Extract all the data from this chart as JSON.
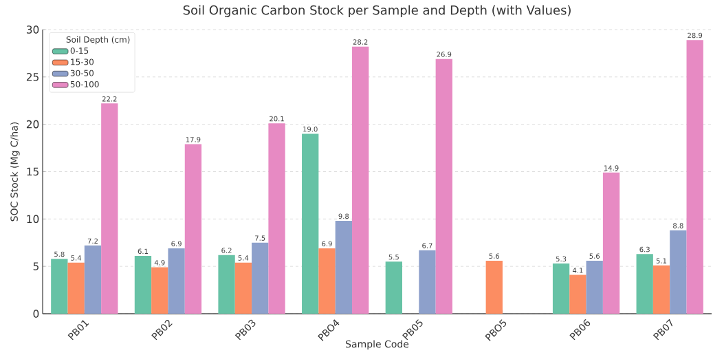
{
  "chart_data": {
    "type": "bar",
    "title": "Soil Organic Carbon Stock per Sample and Depth (with Values)",
    "xlabel": "Sample Code",
    "ylabel": "SOC Stock (Mg C/ha)",
    "legend_title": "Soil Depth (cm)",
    "categories": [
      "PB01",
      "PB02",
      "PB03",
      "PBO4",
      "PB05",
      "PBO5",
      "PB06",
      "PB07"
    ],
    "series": [
      {
        "name": "0-15",
        "color": "#66c2a5",
        "values": [
          5.8,
          6.1,
          6.2,
          19.0,
          5.5,
          null,
          5.3,
          6.3
        ],
        "value_labels": [
          "5.8",
          "6.1",
          "6.2",
          "19.0",
          "5.5",
          null,
          "5.3",
          "6.3"
        ]
      },
      {
        "name": "15-30",
        "color": "#fc8d62",
        "values": [
          5.4,
          4.9,
          5.4,
          6.9,
          null,
          5.6,
          4.1,
          5.1
        ],
        "value_labels": [
          "5.4",
          "4.9",
          "5.4",
          "6.9",
          null,
          "5.6",
          "4.1",
          "5.1"
        ]
      },
      {
        "name": "30-50",
        "color": "#8da0cb",
        "values": [
          7.2,
          6.9,
          7.5,
          9.8,
          6.7,
          null,
          5.6,
          8.8
        ],
        "value_labels": [
          "7.2",
          "6.9",
          "7.5",
          "9.8",
          "6.7",
          null,
          "5.6",
          "8.8"
        ]
      },
      {
        "name": "50-100",
        "color": "#e78ac3",
        "values": [
          22.2,
          17.9,
          20.1,
          28.2,
          26.9,
          null,
          14.9,
          28.9
        ],
        "value_labels": [
          "22.2",
          "17.9",
          "20.1",
          "28.2",
          "26.9",
          null,
          "14.9",
          "28.9"
        ]
      }
    ],
    "ylim": [
      0,
      30
    ],
    "yticks": [
      0,
      5,
      10,
      15,
      20,
      25,
      30
    ],
    "grid": "y",
    "legend": "top left"
  }
}
